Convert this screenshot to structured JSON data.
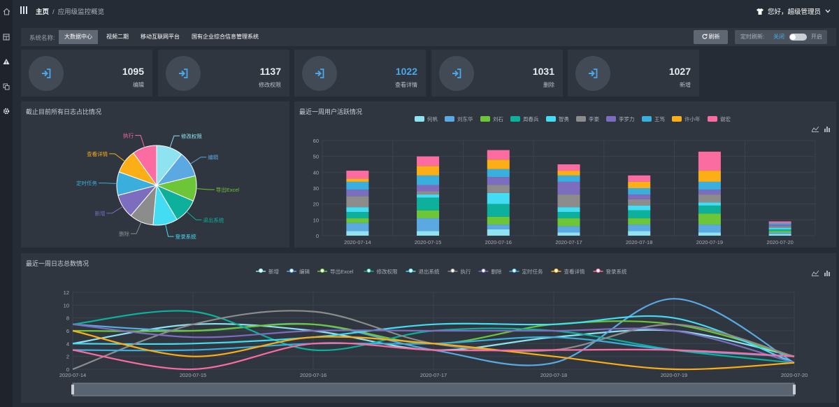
{
  "header": {
    "breadcrumb_home": "主页",
    "breadcrumb_sep": "/",
    "breadcrumb_current": "应用级监控概览",
    "user_greeting": "您好，超级管理员"
  },
  "sidebar": {
    "icons": [
      "home-icon",
      "table-icon",
      "warning-icon",
      "copy-icon",
      "gear-icon"
    ]
  },
  "systembar": {
    "label": "系统名称:",
    "tabs": [
      {
        "label": "大数据中心",
        "active": true
      },
      {
        "label": "视频二期",
        "active": false
      },
      {
        "label": "移动互联网平台",
        "active": false
      },
      {
        "label": "国有企业综合信息管理系统",
        "active": false
      }
    ],
    "refresh_label": "刷新",
    "timer_label": "定时刷新:",
    "timer_off": "关闭",
    "timer_on": "开启"
  },
  "stats": [
    {
      "value": "1095",
      "label": "编辑",
      "highlight": false
    },
    {
      "value": "1137",
      "label": "修改权限",
      "highlight": false
    },
    {
      "value": "1022",
      "label": "查看详情",
      "highlight": true
    },
    {
      "value": "1031",
      "label": "删除",
      "highlight": false
    },
    {
      "value": "1027",
      "label": "新增",
      "highlight": false
    }
  ],
  "colors": {
    "accent": "#4aa8e8",
    "series": [
      "#8fe3f0",
      "#5aa9e2",
      "#6dc638",
      "#0db09a",
      "#44dcf2",
      "#8c8c8c",
      "#7c6dbf",
      "#3aaedc",
      "#fbae16",
      "#fb6da0"
    ]
  },
  "pie": {
    "title": "截止目前所有日志占比情况",
    "chart_data": {
      "type": "pie",
      "labels": [
        "修改权限",
        "编辑",
        "导出Excel",
        "退出系统",
        "登录系统",
        "删除",
        "新增",
        "定时任务",
        "查看详情",
        "执行"
      ],
      "values": [
        1137,
        1095,
        1080,
        1060,
        1050,
        1031,
        1027,
        1000,
        1022,
        1040
      ],
      "colors": [
        "#8fe3f0",
        "#5aa9e2",
        "#6dc638",
        "#0db09a",
        "#44dcf2",
        "#8c8c8c",
        "#7c6dbf",
        "#3aaedc",
        "#fbae16",
        "#fb6da0"
      ]
    }
  },
  "bar": {
    "title": "最近一周用户活跃情况",
    "chart_data": {
      "type": "bar",
      "stacked": true,
      "categories": [
        "2020-07-14",
        "2020-07-15",
        "2020-07-16",
        "2020-07-17",
        "2020-07-18",
        "2020-07-19",
        "2020-07-20"
      ],
      "yticks": [
        0,
        10,
        20,
        30,
        40,
        50,
        60
      ],
      "ylim": [
        0,
        60
      ],
      "legend_position": "top",
      "series": [
        {
          "name": "何帆",
          "color": "#8fe3f0",
          "values": [
            3,
            3,
            4,
            2,
            3,
            2,
            1
          ]
        },
        {
          "name": "刘东华",
          "color": "#5aa9e2",
          "values": [
            5,
            8,
            3,
            4,
            4,
            5,
            1
          ]
        },
        {
          "name": "刘石",
          "color": "#6dc638",
          "values": [
            3,
            5,
            5,
            5,
            4,
            7,
            1
          ]
        },
        {
          "name": "周春兵",
          "color": "#0db09a",
          "values": [
            4,
            8,
            8,
            4,
            5,
            5,
            1
          ]
        },
        {
          "name": "智勇",
          "color": "#44dcf2",
          "values": [
            3,
            2,
            7,
            3,
            3,
            2,
            1
          ]
        },
        {
          "name": "李豪",
          "color": "#8c8c8c",
          "values": [
            7,
            2,
            5,
            8,
            4,
            5,
            1
          ]
        },
        {
          "name": "李罗力",
          "color": "#7c6dbf",
          "values": [
            4,
            4,
            5,
            8,
            3,
            3,
            1
          ]
        },
        {
          "name": "王笃",
          "color": "#3aaedc",
          "values": [
            5,
            6,
            5,
            4,
            4,
            5,
            1
          ]
        },
        {
          "name": "许小年",
          "color": "#fbae16",
          "values": [
            2,
            6,
            6,
            3,
            4,
            7,
            0
          ]
        },
        {
          "name": "谢宏",
          "color": "#fb6da0",
          "values": [
            5,
            6,
            6,
            4,
            4,
            12,
            1
          ]
        }
      ]
    }
  },
  "line": {
    "title": "最近一周日志总数情况",
    "chart_data": {
      "type": "line",
      "smooth": true,
      "categories": [
        "2020-07-14",
        "2020-07-15",
        "2020-07-16",
        "2020-07-17",
        "2020-07-18",
        "2020-07-19",
        "2020-07-20"
      ],
      "yticks": [
        0,
        2,
        4,
        6,
        8,
        10,
        12
      ],
      "ylim": [
        0,
        12
      ],
      "legend_position": "top",
      "series": [
        {
          "name": "新增",
          "color": "#8fe3f0",
          "values": [
            4,
            7,
            6,
            3,
            5,
            6,
            2
          ]
        },
        {
          "name": "编辑",
          "color": "#5aa9e2",
          "values": [
            7,
            6,
            7,
            3,
            1,
            11,
            1
          ]
        },
        {
          "name": "导出Excel",
          "color": "#6dc638",
          "values": [
            6,
            6,
            7,
            4,
            7,
            7,
            2
          ]
        },
        {
          "name": "修改权限",
          "color": "#0db09a",
          "values": [
            7,
            9,
            3,
            6,
            6,
            3,
            1
          ]
        },
        {
          "name": "退出系统",
          "color": "#44dcf2",
          "values": [
            4,
            4,
            5,
            7,
            7,
            8,
            1
          ]
        },
        {
          "name": "执行",
          "color": "#8c8c8c",
          "values": [
            0,
            7,
            9,
            4,
            3,
            7,
            2
          ]
        },
        {
          "name": "删除",
          "color": "#7c6dbf",
          "values": [
            7,
            5,
            6,
            6,
            6,
            6,
            1
          ]
        },
        {
          "name": "定时任务",
          "color": "#3aaedc",
          "values": [
            3,
            3,
            4,
            4,
            5,
            3,
            2
          ]
        },
        {
          "name": "查看详情",
          "color": "#fbae16",
          "values": [
            6,
            2,
            5,
            4,
            2,
            0,
            1
          ]
        },
        {
          "name": "登录系统",
          "color": "#fb6da0",
          "values": [
            3,
            0,
            4,
            3,
            3,
            3,
            2
          ]
        }
      ]
    }
  }
}
